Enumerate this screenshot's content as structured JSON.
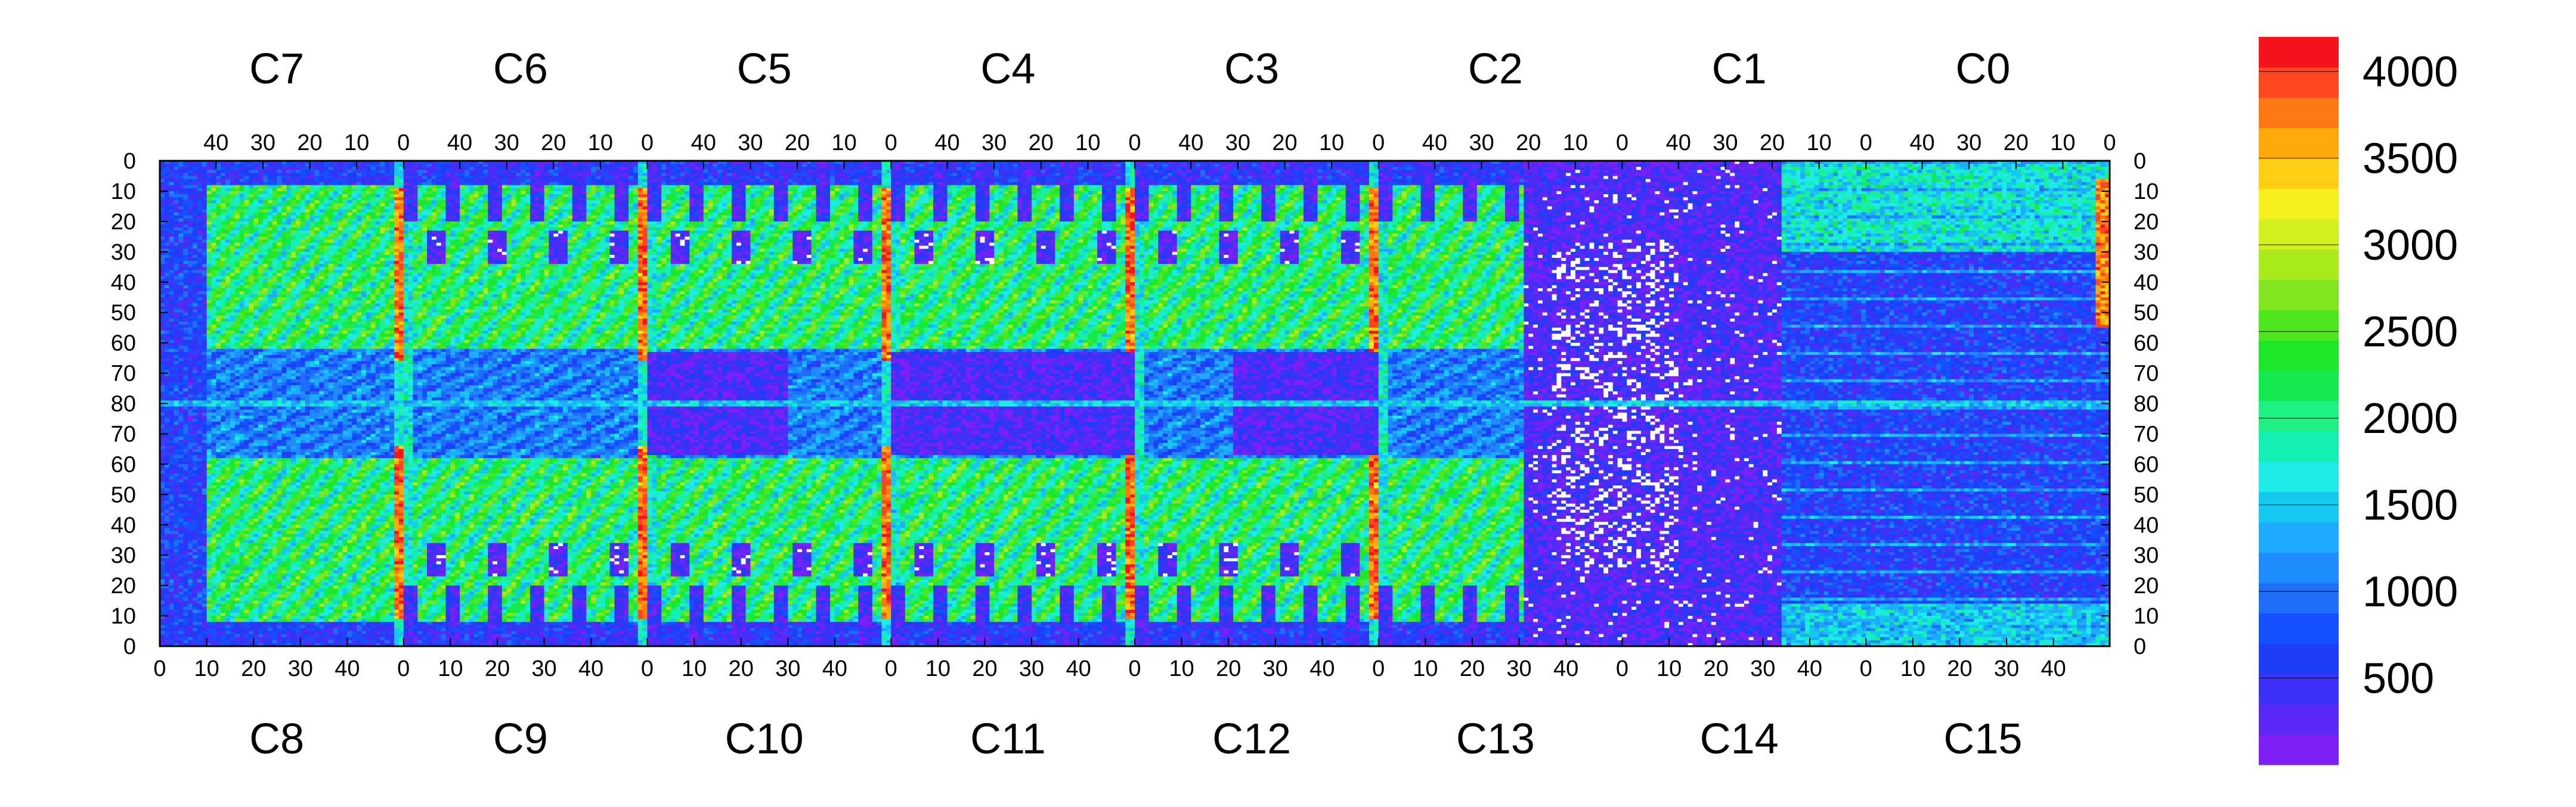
{
  "chart_data": {
    "type": "heatmap",
    "title": "",
    "xlabel": "",
    "ylabel": "",
    "grid": false,
    "legend": "colorbar-right",
    "chip_labels_top": [
      "C7",
      "C6",
      "C5",
      "C4",
      "C3",
      "C2",
      "C1",
      "C0"
    ],
    "chip_labels_bottom": [
      "C8",
      "C9",
      "C10",
      "C11",
      "C12",
      "C13",
      "C14",
      "C15"
    ],
    "top_axis": {
      "range_per_chip": [
        52,
        0
      ],
      "tick_labels": [
        "40",
        "30",
        "20",
        "10",
        "0"
      ]
    },
    "bottom_axis": {
      "range_per_chip": [
        0,
        52
      ],
      "tick_labels": [
        "0",
        "10",
        "20",
        "30",
        "40"
      ]
    },
    "y_axis": {
      "upper_half_range": [
        0,
        80
      ],
      "lower_half_range": [
        80,
        0
      ],
      "tick_labels": [
        "0",
        "10",
        "20",
        "30",
        "40",
        "50",
        "60",
        "70",
        "80",
        "70",
        "60",
        "50",
        "40",
        "30",
        "20",
        "10",
        "0"
      ]
    },
    "z_range": [
      0,
      4200
    ],
    "colorbar": {
      "tick_values": [
        500,
        1000,
        1500,
        2000,
        2500,
        3000,
        3500,
        4000
      ],
      "tick_labels": [
        "500",
        "1000",
        "1500",
        "2000",
        "2500",
        "3000",
        "3500",
        "4000"
      ],
      "palette": [
        "#7e1ff5",
        "#5a28f5",
        "#3c32f7",
        "#1f3cf7",
        "#1450ff",
        "#1e6efa",
        "#1e8cff",
        "#1eaaff",
        "#14c8f0",
        "#1eebe6",
        "#14f0b4",
        "#1ef082",
        "#14eb50",
        "#1ee628",
        "#50e61e",
        "#82e61e",
        "#aaeb1e",
        "#d2f01e",
        "#f5f01e",
        "#ffcd14",
        "#ffaa0a",
        "#ff7814",
        "#ff461e",
        "#f5141e"
      ]
    },
    "regions": [
      {
        "chip_half": "top",
        "rows": [
          0,
          80
        ],
        "description_level": 2100
      },
      {
        "chip_half": "bottom",
        "rows": [
          0,
          80
        ],
        "description_level": 2000
      }
    ]
  }
}
